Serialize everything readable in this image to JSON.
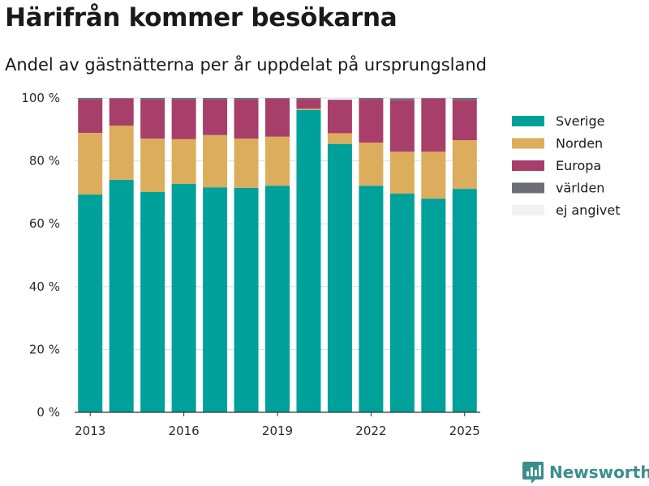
{
  "header": {
    "title": "Härifrån kommer besökarna",
    "subtitle": "Andel av gästnätterna per år uppdelat på ursprungsland"
  },
  "brand": {
    "name": "Newsworthy",
    "icon": "newsworthy-logo-icon",
    "color": "#3a8f8a"
  },
  "chart_data": {
    "type": "bar",
    "stacked": true,
    "title": "Härifrån kommer besökarna",
    "subtitle": "Andel av gästnätterna per år uppdelat på ursprungsland",
    "xlabel": "",
    "ylabel": "",
    "ylim": [
      0,
      100
    ],
    "y_ticks": [
      0,
      20,
      40,
      60,
      80,
      100
    ],
    "y_tick_labels": [
      "0 %",
      "20 %",
      "40 %",
      "60 %",
      "80 %",
      "100 %"
    ],
    "x_ticks": [
      "2013",
      "2016",
      "2019",
      "2022",
      "2025"
    ],
    "grid": true,
    "legend_position": "right",
    "categories": [
      "2013",
      "2014",
      "2015",
      "2016",
      "2017",
      "2018",
      "2019",
      "2020",
      "2021",
      "2022",
      "2023",
      "2024",
      "2025"
    ],
    "series": [
      {
        "name": "Sverige",
        "color": "#00a19a",
        "values": [
          69.3,
          74.0,
          70.1,
          72.7,
          71.6,
          71.4,
          72.1,
          96.2,
          85.4,
          72.1,
          69.6,
          68.0,
          71.1
        ]
      },
      {
        "name": "Norden",
        "color": "#dcad5c",
        "values": [
          19.6,
          17.2,
          17.0,
          14.2,
          16.6,
          15.7,
          15.6,
          0.4,
          3.4,
          13.7,
          13.3,
          14.9,
          15.5
        ]
      },
      {
        "name": "Europa",
        "color": "#a83f6b",
        "values": [
          10.6,
          8.6,
          12.4,
          12.6,
          11.3,
          12.4,
          12.1,
          3.1,
          10.5,
          13.8,
          16.5,
          16.9,
          12.8
        ]
      },
      {
        "name": "världen",
        "color": "#6b6e76",
        "values": [
          0.5,
          0.2,
          0.5,
          0.5,
          0.5,
          0.5,
          0.2,
          0.3,
          0.2,
          0.4,
          0.5,
          0.2,
          0.6
        ]
      },
      {
        "name": "ej angivet",
        "color": "#f2f2f2",
        "values": [
          0,
          0,
          0,
          0,
          0,
          0,
          0,
          0,
          0,
          0,
          0,
          0,
          0
        ]
      }
    ]
  }
}
